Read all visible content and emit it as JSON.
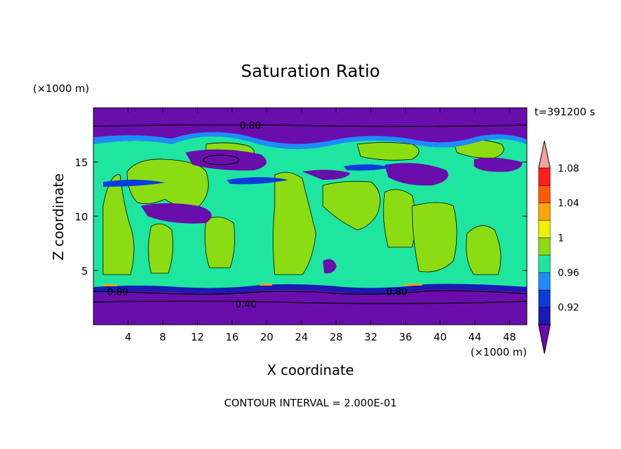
{
  "chart_data": {
    "type": "heatmap",
    "title": "Saturation Ratio",
    "time_label": "t=391200 s",
    "xlabel": "X coordinate",
    "ylabel": "Z coordinate",
    "x_unit": "(×1000 m)",
    "y_unit": "(×1000 m)",
    "xlim": [
      0,
      50
    ],
    "ylim": [
      0,
      20
    ],
    "x_ticks": [
      4,
      8,
      12,
      16,
      20,
      24,
      28,
      32,
      36,
      40,
      44,
      48
    ],
    "y_ticks": [
      5,
      10,
      15
    ],
    "footer": "CONTOUR INTERVAL = 2.000E-01",
    "colorbar": {
      "labels": [
        "1.08",
        "1.04",
        "1",
        "0.96",
        "0.92"
      ],
      "levels": [
        0.92,
        0.94,
        0.96,
        0.98,
        1.0,
        1.02,
        1.04,
        1.06,
        1.08,
        1.1
      ],
      "colors": [
        "#6a0dad",
        "#1a1ab4",
        "#0a3cdc",
        "#1e8cff",
        "#1ee6a0",
        "#8cdc14",
        "#f0f000",
        "#ffa500",
        "#ff5a00",
        "#ff1e1e",
        "#f4a0a0"
      ]
    },
    "contour_labels": [
      {
        "text": "0.80",
        "x": 18.1,
        "z": 18.4
      },
      {
        "text": "0.80",
        "x": 2.8,
        "z": 3.05
      },
      {
        "text": "0.80",
        "x": 35.0,
        "z": 3.05
      },
      {
        "text": "0.40",
        "x": 17.6,
        "z": 1.9
      }
    ],
    "field_regions": {
      "upper_dry_band_z": [
        18.3,
        20
      ],
      "lower_dry_band_z": [
        0,
        3.2
      ],
      "moist_layer_z": [
        3.2,
        17.0
      ]
    }
  }
}
